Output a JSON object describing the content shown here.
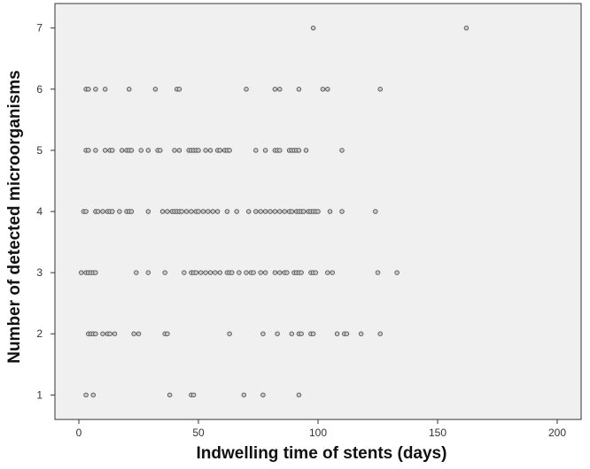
{
  "chart_data": {
    "type": "scatter",
    "title": "",
    "xlabel": "Indwelling time of stents (days)",
    "ylabel": "Number of detected microorganisms",
    "xlim": [
      -10,
      210
    ],
    "ylim": [
      0.6,
      7.4
    ],
    "xticks": [
      0,
      50,
      100,
      150,
      200
    ],
    "yticks": [
      1,
      2,
      3,
      4,
      5,
      6,
      7
    ],
    "grid": false,
    "legend": "none",
    "colors": {
      "plot_bg": "#f0f0f0",
      "marker_fill": "#c9c9c9",
      "marker_stroke": "#555555",
      "axis": "#333333"
    },
    "series": [
      {
        "points": [
          [
            3,
            1
          ],
          [
            6,
            1
          ],
          [
            38,
            1
          ],
          [
            47,
            1
          ],
          [
            48,
            1
          ],
          [
            69,
            1
          ],
          [
            77,
            1
          ],
          [
            92,
            1
          ],
          [
            4,
            2
          ],
          [
            5,
            2
          ],
          [
            6,
            2
          ],
          [
            7,
            2
          ],
          [
            10,
            2
          ],
          [
            12,
            2
          ],
          [
            13,
            2
          ],
          [
            15,
            2
          ],
          [
            23,
            2
          ],
          [
            25,
            2
          ],
          [
            36,
            2
          ],
          [
            37,
            2
          ],
          [
            63,
            2
          ],
          [
            77,
            2
          ],
          [
            83,
            2
          ],
          [
            89,
            2
          ],
          [
            92,
            2
          ],
          [
            93,
            2
          ],
          [
            97,
            2
          ],
          [
            98,
            2
          ],
          [
            108,
            2
          ],
          [
            111,
            2
          ],
          [
            112,
            2
          ],
          [
            118,
            2
          ],
          [
            126,
            2
          ],
          [
            1,
            3
          ],
          [
            3,
            3
          ],
          [
            4,
            3
          ],
          [
            5,
            3
          ],
          [
            6,
            3
          ],
          [
            7,
            3
          ],
          [
            24,
            3
          ],
          [
            29,
            3
          ],
          [
            36,
            3
          ],
          [
            44,
            3
          ],
          [
            47,
            3
          ],
          [
            48,
            3
          ],
          [
            49,
            3
          ],
          [
            51,
            3
          ],
          [
            53,
            3
          ],
          [
            55,
            3
          ],
          [
            57,
            3
          ],
          [
            59,
            3
          ],
          [
            62,
            3
          ],
          [
            63,
            3
          ],
          [
            64,
            3
          ],
          [
            67,
            3
          ],
          [
            70,
            3
          ],
          [
            72,
            3
          ],
          [
            73,
            3
          ],
          [
            76,
            3
          ],
          [
            78,
            3
          ],
          [
            82,
            3
          ],
          [
            84,
            3
          ],
          [
            86,
            3
          ],
          [
            87,
            3
          ],
          [
            90,
            3
          ],
          [
            91,
            3
          ],
          [
            92,
            3
          ],
          [
            93,
            3
          ],
          [
            97,
            3
          ],
          [
            98,
            3
          ],
          [
            99,
            3
          ],
          [
            104,
            3
          ],
          [
            106,
            3
          ],
          [
            125,
            3
          ],
          [
            133,
            3
          ],
          [
            2,
            4
          ],
          [
            3,
            4
          ],
          [
            7,
            4
          ],
          [
            8,
            4
          ],
          [
            10,
            4
          ],
          [
            12,
            4
          ],
          [
            13,
            4
          ],
          [
            14,
            4
          ],
          [
            17,
            4
          ],
          [
            20,
            4
          ],
          [
            21,
            4
          ],
          [
            22,
            4
          ],
          [
            29,
            4
          ],
          [
            35,
            4
          ],
          [
            37,
            4
          ],
          [
            39,
            4
          ],
          [
            40,
            4
          ],
          [
            41,
            4
          ],
          [
            42,
            4
          ],
          [
            43,
            4
          ],
          [
            45,
            4
          ],
          [
            47,
            4
          ],
          [
            49,
            4
          ],
          [
            50,
            4
          ],
          [
            52,
            4
          ],
          [
            54,
            4
          ],
          [
            56,
            4
          ],
          [
            58,
            4
          ],
          [
            62,
            4
          ],
          [
            66,
            4
          ],
          [
            71,
            4
          ],
          [
            74,
            4
          ],
          [
            76,
            4
          ],
          [
            78,
            4
          ],
          [
            80,
            4
          ],
          [
            82,
            4
          ],
          [
            84,
            4
          ],
          [
            86,
            4
          ],
          [
            88,
            4
          ],
          [
            89,
            4
          ],
          [
            91,
            4
          ],
          [
            92,
            4
          ],
          [
            93,
            4
          ],
          [
            94,
            4
          ],
          [
            96,
            4
          ],
          [
            97,
            4
          ],
          [
            98,
            4
          ],
          [
            99,
            4
          ],
          [
            100,
            4
          ],
          [
            105,
            4
          ],
          [
            110,
            4
          ],
          [
            124,
            4
          ],
          [
            3,
            5
          ],
          [
            4,
            5
          ],
          [
            7,
            5
          ],
          [
            11,
            5
          ],
          [
            13,
            5
          ],
          [
            14,
            5
          ],
          [
            18,
            5
          ],
          [
            20,
            5
          ],
          [
            21,
            5
          ],
          [
            22,
            5
          ],
          [
            26,
            5
          ],
          [
            29,
            5
          ],
          [
            33,
            5
          ],
          [
            34,
            5
          ],
          [
            40,
            5
          ],
          [
            42,
            5
          ],
          [
            46,
            5
          ],
          [
            47,
            5
          ],
          [
            48,
            5
          ],
          [
            49,
            5
          ],
          [
            50,
            5
          ],
          [
            53,
            5
          ],
          [
            55,
            5
          ],
          [
            58,
            5
          ],
          [
            59,
            5
          ],
          [
            61,
            5
          ],
          [
            62,
            5
          ],
          [
            63,
            5
          ],
          [
            74,
            5
          ],
          [
            78,
            5
          ],
          [
            82,
            5
          ],
          [
            83,
            5
          ],
          [
            84,
            5
          ],
          [
            88,
            5
          ],
          [
            89,
            5
          ],
          [
            90,
            5
          ],
          [
            91,
            5
          ],
          [
            92,
            5
          ],
          [
            95,
            5
          ],
          [
            110,
            5
          ],
          [
            3,
            6
          ],
          [
            4,
            6
          ],
          [
            7,
            6
          ],
          [
            11,
            6
          ],
          [
            21,
            6
          ],
          [
            32,
            6
          ],
          [
            41,
            6
          ],
          [
            42,
            6
          ],
          [
            70,
            6
          ],
          [
            82,
            6
          ],
          [
            84,
            6
          ],
          [
            92,
            6
          ],
          [
            102,
            6
          ],
          [
            104,
            6
          ],
          [
            126,
            6
          ],
          [
            98,
            7
          ],
          [
            162,
            7
          ]
        ]
      }
    ]
  }
}
